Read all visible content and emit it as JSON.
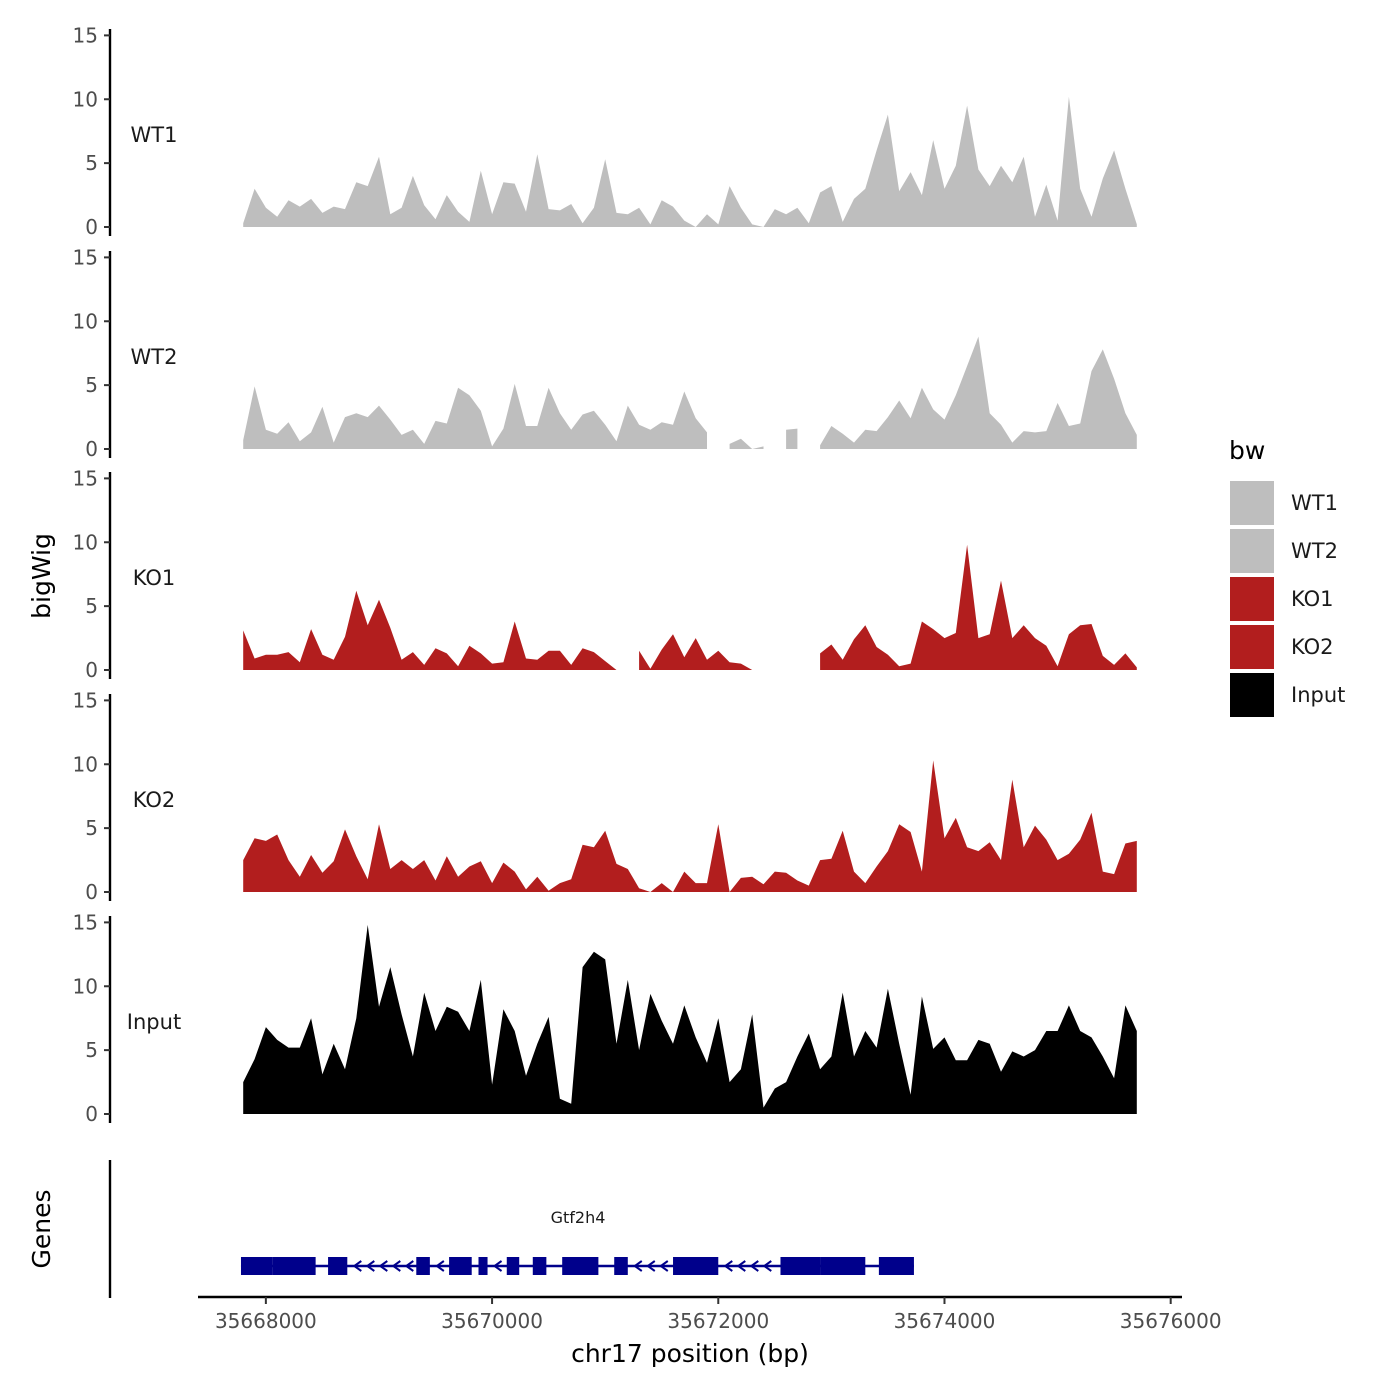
{
  "chart_data": {
    "type": "area",
    "title": "",
    "y_title": "bigWig",
    "genes_title": "Genes",
    "x_title": "chr17 position (bp)",
    "x_range": [
      35667400,
      35676100
    ],
    "x_ticks": [
      "35668000",
      "35670000",
      "35672000",
      "35674000",
      "35676000"
    ],
    "y_ticks": [
      "0",
      "5",
      "10",
      "15"
    ],
    "ylim": [
      0,
      15.5
    ],
    "legend": {
      "title": "bw",
      "position": "right",
      "items": [
        {
          "label": "WT1",
          "color": "#bebebe"
        },
        {
          "label": "WT2",
          "color": "#bebebe"
        },
        {
          "label": "KO1",
          "color": "#b21e1e"
        },
        {
          "label": "KO2",
          "color": "#b21e1e"
        },
        {
          "label": "Input",
          "color": "#000000"
        }
      ]
    },
    "series": [
      {
        "name": "WT1",
        "label": "WT1",
        "color": "#bebebe",
        "x": [
          35667800,
          35667900,
          35668000,
          35668100,
          35668200,
          35668300,
          35668400,
          35668500,
          35668600,
          35668700,
          35668800,
          35668900,
          35669000,
          35669100,
          35669200,
          35669300,
          35669400,
          35669500,
          35669600,
          35669700,
          35669800,
          35669900,
          35670000,
          35670100,
          35670200,
          35670300,
          35670400,
          35670500,
          35670600,
          35670700,
          35670800,
          35670900,
          35671000,
          35671100,
          35671200,
          35671300,
          35671400,
          35671500,
          35671600,
          35671700,
          35671800,
          35671900,
          35672000,
          35672100,
          35672200,
          35672300,
          35672400,
          35672500,
          35672600,
          35672700,
          35672800,
          35672900,
          35673000,
          35673100,
          35673200,
          35673300,
          35673400,
          35673500,
          35673600,
          35673700,
          35673800,
          35673900,
          35674000,
          35674100,
          35674200,
          35674300,
          35674400,
          35674500,
          35674600,
          35674700,
          35674800,
          35674900,
          35675000,
          35675100,
          35675200,
          35675300,
          35675400,
          35675500,
          35675600,
          35675700
        ],
        "values": [
          0.3,
          3,
          1.5,
          0.8,
          2.1,
          1.6,
          2.2,
          1.1,
          1.6,
          1.4,
          3.5,
          3.2,
          5.5,
          1,
          1.5,
          4,
          1.7,
          0.6,
          2.5,
          1.2,
          0.4,
          4.4,
          1,
          3.5,
          3.4,
          1.2,
          5.7,
          1.4,
          1.3,
          1.8,
          0.3,
          1.5,
          5.3,
          1.1,
          1,
          1.5,
          0.2,
          2.1,
          1.6,
          0.5,
          0,
          1,
          0.2,
          3.2,
          1.5,
          0.2,
          0,
          1.4,
          1,
          1.5,
          0.3,
          2.7,
          3.2,
          0.4,
          2.2,
          3,
          6,
          8.8,
          2.8,
          4.3,
          2.5,
          6.8,
          3,
          4.8,
          9.5,
          4.5,
          3.2,
          4.8,
          3.5,
          5.5,
          0.8,
          3.3,
          0.5,
          10.2,
          3,
          0.8,
          3.8,
          6,
          3,
          0.2
        ],
        "nulls": []
      },
      {
        "name": "WT2",
        "label": "WT2",
        "color": "#bebebe",
        "x": [
          35667800,
          35667900,
          35668000,
          35668100,
          35668200,
          35668300,
          35668400,
          35668500,
          35668600,
          35668700,
          35668800,
          35668900,
          35669000,
          35669100,
          35669200,
          35669300,
          35669400,
          35669500,
          35669600,
          35669700,
          35669800,
          35669900,
          35670000,
          35670100,
          35670200,
          35670300,
          35670400,
          35670500,
          35670600,
          35670700,
          35670800,
          35670900,
          35671000,
          35671100,
          35671200,
          35671300,
          35671400,
          35671500,
          35671600,
          35671700,
          35671800,
          35671900,
          35672000,
          35672100,
          35672200,
          35672300,
          35672400,
          35672500,
          35672600,
          35672700,
          35672800,
          35672900,
          35673000,
          35673100,
          35673200,
          35673300,
          35673400,
          35673500,
          35673600,
          35673700,
          35673800,
          35673900,
          35674000,
          35674100,
          35674200,
          35674300,
          35674400,
          35674500,
          35674600,
          35674700,
          35674800,
          35674900,
          35675000,
          35675100,
          35675200,
          35675300,
          35675400,
          35675500,
          35675600,
          35675700
        ],
        "values": [
          0.7,
          4.9,
          1.5,
          1.2,
          2.1,
          0.6,
          1.3,
          3.3,
          0.5,
          2.5,
          2.8,
          2.5,
          3.4,
          2.3,
          1.1,
          1.5,
          0.4,
          2.2,
          2,
          4.8,
          4.2,
          3,
          0.2,
          1.6,
          5.1,
          1.8,
          1.8,
          4.8,
          2.8,
          1.5,
          2.7,
          3,
          1.9,
          0.6,
          3.4,
          1.9,
          1.5,
          2.1,
          1.9,
          4.5,
          2.4,
          1.3,
          0.2,
          0.4,
          0.8,
          0,
          0.2,
          1.8,
          1.5,
          1.6,
          0.2,
          0.3,
          1.8,
          1.2,
          0.5,
          1.5,
          1.4,
          2.5,
          3.8,
          2.4,
          4.8,
          3.1,
          2.3,
          4.2,
          6.5,
          8.8,
          2.8,
          1.9,
          0.5,
          1.4,
          1.3,
          1.4,
          3.6,
          1.8,
          2,
          6.1,
          7.8,
          5.5,
          2.8,
          1.1
        ],
        "nulls": [
          35672000,
          35672500,
          35672800
        ]
      },
      {
        "name": "KO1",
        "label": "KO1",
        "color": "#b21e1e",
        "x": [
          35667800,
          35667900,
          35668000,
          35668100,
          35668200,
          35668300,
          35668400,
          35668500,
          35668600,
          35668700,
          35668800,
          35668900,
          35669000,
          35669100,
          35669200,
          35669300,
          35669400,
          35669500,
          35669600,
          35669700,
          35669800,
          35669900,
          35670000,
          35670100,
          35670200,
          35670300,
          35670400,
          35670500,
          35670600,
          35670700,
          35670800,
          35670900,
          35671000,
          35671100,
          35671200,
          35671300,
          35671400,
          35671500,
          35671600,
          35671700,
          35671800,
          35671900,
          35672000,
          35672100,
          35672200,
          35672300,
          35672400,
          35672500,
          35672600,
          35672700,
          35672800,
          35672900,
          35673000,
          35673100,
          35673200,
          35673300,
          35673400,
          35673500,
          35673600,
          35673700,
          35673800,
          35673900,
          35674000,
          35674100,
          35674200,
          35674300,
          35674400,
          35674500,
          35674600,
          35674700,
          35674800,
          35674900,
          35675000,
          35675100,
          35675200,
          35675300,
          35675400,
          35675500,
          35675600,
          35675700
        ],
        "values": [
          3.1,
          0.9,
          1.2,
          1.2,
          1.4,
          0.6,
          3.2,
          1.2,
          0.8,
          2.6,
          6.2,
          3.5,
          5.5,
          3.3,
          0.8,
          1.4,
          0.4,
          1.7,
          1.3,
          0.3,
          1.9,
          1.3,
          0.5,
          0.6,
          3.8,
          0.9,
          0.8,
          1.5,
          1.5,
          0.4,
          1.7,
          1.4,
          0.7,
          0,
          0.9,
          1.5,
          0.1,
          1.6,
          2.8,
          1,
          2.5,
          0.8,
          1.5,
          0.6,
          0.5,
          0,
          3.1,
          0.3,
          0,
          0,
          0,
          1.3,
          2,
          0.8,
          2.4,
          3.5,
          1.8,
          1.2,
          0.3,
          0.5,
          3.8,
          3.2,
          2.5,
          2.9,
          9.8,
          2.5,
          2.8,
          7,
          2.5,
          3.5,
          2.5,
          1.9,
          0.3,
          2.8,
          3.5,
          3.6,
          1.1,
          0.4,
          1.3,
          0.2
        ],
        "nulls": [
          35671200,
          35672400,
          35672500,
          35672700,
          35672800
        ]
      },
      {
        "name": "KO2",
        "label": "KO2",
        "color": "#b21e1e",
        "x": [
          35667800,
          35667900,
          35668000,
          35668100,
          35668200,
          35668300,
          35668400,
          35668500,
          35668600,
          35668700,
          35668800,
          35668900,
          35669000,
          35669100,
          35669200,
          35669300,
          35669400,
          35669500,
          35669600,
          35669700,
          35669800,
          35669900,
          35670000,
          35670100,
          35670200,
          35670300,
          35670400,
          35670500,
          35670600,
          35670700,
          35670800,
          35670900,
          35671000,
          35671100,
          35671200,
          35671300,
          35671400,
          35671500,
          35671600,
          35671700,
          35671800,
          35671900,
          35672000,
          35672100,
          35672200,
          35672300,
          35672400,
          35672500,
          35672600,
          35672700,
          35672800,
          35672900,
          35673000,
          35673100,
          35673200,
          35673300,
          35673400,
          35673500,
          35673600,
          35673700,
          35673800,
          35673900,
          35674000,
          35674100,
          35674200,
          35674300,
          35674400,
          35674500,
          35674600,
          35674700,
          35674800,
          35674900,
          35675000,
          35675100,
          35675200,
          35675300,
          35675400,
          35675500,
          35675600,
          35675700
        ],
        "values": [
          2.5,
          4.2,
          4,
          4.5,
          2.5,
          1.2,
          2.9,
          1.5,
          2.4,
          4.9,
          2.8,
          1,
          5.3,
          1.8,
          2.5,
          1.8,
          2.5,
          0.9,
          2.8,
          1.2,
          2,
          2.4,
          0.7,
          2.3,
          1.6,
          0.2,
          1.2,
          0.1,
          0.7,
          1,
          3.7,
          3.5,
          4.8,
          2.2,
          1.8,
          0.3,
          0,
          0.7,
          0,
          1.6,
          0.7,
          0.7,
          5.3,
          0,
          1.1,
          1.2,
          0.6,
          1.6,
          1.5,
          0.9,
          0.5,
          2.5,
          2.6,
          4.8,
          1.6,
          0.7,
          2,
          3.2,
          5.3,
          4.7,
          1.6,
          10.3,
          4.2,
          5.8,
          3.5,
          3.2,
          3.9,
          2.5,
          8.8,
          3.5,
          5.2,
          4.1,
          2.5,
          3,
          4.1,
          6.2,
          1.6,
          1.4,
          3.8,
          4
        ],
        "nulls": []
      },
      {
        "name": "Input",
        "label": "Input",
        "color": "#000000",
        "x": [
          35667800,
          35667900,
          35668000,
          35668100,
          35668200,
          35668300,
          35668400,
          35668500,
          35668600,
          35668700,
          35668800,
          35668900,
          35669000,
          35669100,
          35669200,
          35669300,
          35669400,
          35669500,
          35669600,
          35669700,
          35669800,
          35669900,
          35670000,
          35670100,
          35670200,
          35670300,
          35670400,
          35670500,
          35670600,
          35670700,
          35670800,
          35670900,
          35671000,
          35671100,
          35671200,
          35671300,
          35671400,
          35671500,
          35671600,
          35671700,
          35671800,
          35671900,
          35672000,
          35672100,
          35672200,
          35672300,
          35672400,
          35672500,
          35672600,
          35672700,
          35672800,
          35672900,
          35673000,
          35673100,
          35673200,
          35673300,
          35673400,
          35673500,
          35673600,
          35673700,
          35673800,
          35673900,
          35674000,
          35674100,
          35674200,
          35674300,
          35674400,
          35674500,
          35674600,
          35674700,
          35674800,
          35674900,
          35675000,
          35675100,
          35675200,
          35675300,
          35675400,
          35675500,
          35675600,
          35675700
        ],
        "values": [
          2.5,
          4.3,
          6.8,
          5.8,
          5.2,
          5.2,
          7.5,
          3.1,
          5.5,
          3.5,
          7.5,
          14.8,
          8.4,
          11.5,
          7.8,
          4.5,
          9.5,
          6.5,
          8.4,
          8,
          6.5,
          10.5,
          2.3,
          8.2,
          6.5,
          3,
          5.5,
          7.6,
          1.2,
          0.8,
          11.5,
          12.7,
          12.1,
          5.5,
          10.5,
          5,
          9.4,
          7.3,
          5.5,
          8.5,
          6,
          4,
          7.5,
          2.5,
          3.5,
          7.8,
          0.5,
          2,
          2.5,
          4.5,
          6.3,
          3.5,
          4.5,
          9.5,
          4.5,
          6.5,
          5.2,
          9.8,
          5.5,
          1.5,
          9.2,
          5.1,
          6,
          4.2,
          4.2,
          5.8,
          5.5,
          3.3,
          4.9,
          4.5,
          5,
          6.5,
          6.5,
          8.5,
          6.5,
          6,
          4.5,
          2.8,
          8.5,
          6.5
        ],
        "nulls": []
      }
    ],
    "gene": {
      "name": "Gtf2h4",
      "strand": "-",
      "color": "#00008b",
      "start": 35667780,
      "end": 35673730,
      "exons": [
        [
          35667780,
          35668060
        ],
        [
          35668060,
          35668440
        ],
        [
          35668550,
          35668720
        ],
        [
          35669330,
          35669450
        ],
        [
          35669620,
          35669820
        ],
        [
          35669880,
          35669960
        ],
        [
          35670130,
          35670240
        ],
        [
          35670360,
          35670480
        ],
        [
          35670620,
          35670940
        ],
        [
          35671080,
          35671200
        ],
        [
          35671600,
          35672000
        ],
        [
          35672550,
          35672900
        ],
        [
          35672900,
          35673300
        ],
        [
          35673420,
          35673730
        ]
      ]
    }
  }
}
